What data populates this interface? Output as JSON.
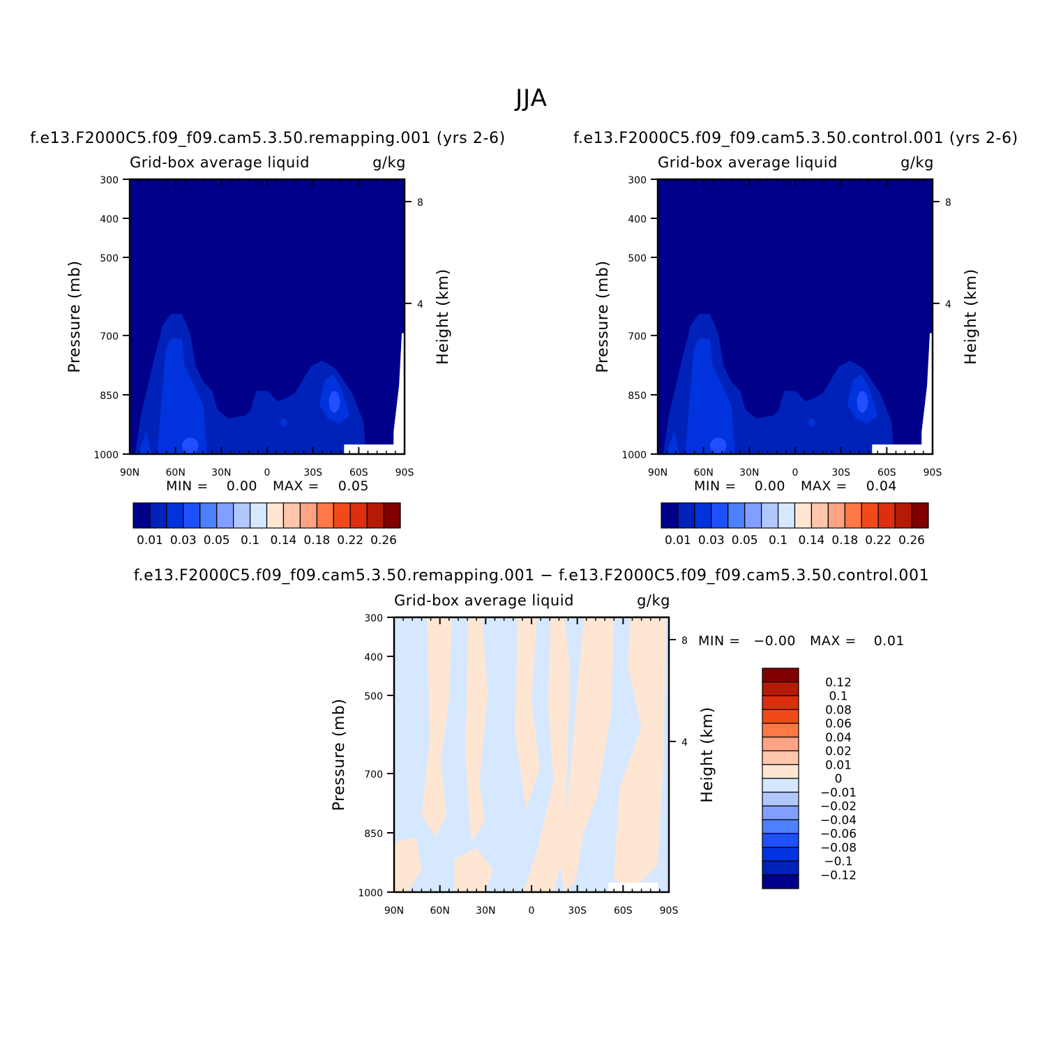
{
  "figure": {
    "title": "JJA"
  },
  "colors": {
    "frame": "#000000",
    "abs_palette": [
      "#00008b",
      "#0022b8",
      "#0033dd",
      "#1f4fff",
      "#4d80ff",
      "#809fff",
      "#b3c7ff",
      "#d6e8ff",
      "#ffe6d3",
      "#ffc6ad",
      "#ffa385",
      "#ff7845",
      "#f04a1a",
      "#dd2f10",
      "#b31a08",
      "#800000"
    ],
    "diff_palette": [
      "#00008b",
      "#0022b8",
      "#0033dd",
      "#1f4fff",
      "#4d80ff",
      "#809fff",
      "#b3c7ff",
      "#d6e8ff",
      "#ffe6d3",
      "#ffc6ad",
      "#ffa385",
      "#ff7845",
      "#f04a1a",
      "#dd2f10",
      "#b31a08",
      "#800000"
    ]
  },
  "chart_data": [
    {
      "type": "heatmap",
      "case_title": "f.e13.F2000C5.f09_f09.cam5.3.50.remapping.001 (yrs 2-6)",
      "title": "Grid-box average liquid",
      "units": "g/kg",
      "xlabel": "",
      "ylabel": "Pressure (mb)",
      "y2label": "Height (km)",
      "x_ticks": [
        "90N",
        "60N",
        "30N",
        "0",
        "30S",
        "60S",
        "90S"
      ],
      "y_ticks": [
        "300",
        "400",
        "500",
        "700",
        "850",
        "1000"
      ],
      "y2_ticks": [
        "8",
        "4"
      ],
      "min_label": "MIN =",
      "min_value": "0.00",
      "max_label": "MAX =",
      "max_value": "0.05",
      "colorbar_labels": [
        "0.01",
        "0.03",
        "0.05",
        "0.1",
        "0.14",
        "0.18",
        "0.22",
        "0.26"
      ],
      "colorbar_orientation": "horizontal"
    },
    {
      "type": "heatmap",
      "case_title": "f.e13.F2000C5.f09_f09.cam5.3.50.control.001 (yrs 2-6)",
      "title": "Grid-box average liquid",
      "units": "g/kg",
      "xlabel": "",
      "ylabel": "Pressure (mb)",
      "y2label": "Height (km)",
      "x_ticks": [
        "90N",
        "60N",
        "30N",
        "0",
        "30S",
        "60S",
        "90S"
      ],
      "y_ticks": [
        "300",
        "400",
        "500",
        "700",
        "850",
        "1000"
      ],
      "y2_ticks": [
        "8",
        "4"
      ],
      "min_label": "MIN =",
      "min_value": "0.00",
      "max_label": "MAX =",
      "max_value": "0.04",
      "colorbar_labels": [
        "0.01",
        "0.03",
        "0.05",
        "0.1",
        "0.14",
        "0.18",
        "0.22",
        "0.26"
      ],
      "colorbar_orientation": "horizontal"
    },
    {
      "type": "heatmap",
      "case_title": "f.e13.F2000C5.f09_f09.cam5.3.50.remapping.001 − f.e13.F2000C5.f09_f09.cam5.3.50.control.001",
      "title": "Grid-box average liquid",
      "units": "g/kg",
      "xlabel": "",
      "ylabel": "Pressure (mb)",
      "y2label": "Height (km)",
      "x_ticks": [
        "90N",
        "60N",
        "30N",
        "0",
        "30S",
        "60S",
        "90S"
      ],
      "y_ticks": [
        "300",
        "400",
        "500",
        "700",
        "850",
        "1000"
      ],
      "y2_ticks": [
        "8",
        "4"
      ],
      "min_label": "MIN =",
      "min_value": "−0.00",
      "max_label": "MAX =",
      "max_value": "0.01",
      "colorbar_labels": [
        "0.12",
        "0.1",
        "0.08",
        "0.06",
        "0.04",
        "0.02",
        "0.01",
        "0",
        "−0.01",
        "−0.02",
        "−0.04",
        "−0.06",
        "−0.08",
        "−0.1",
        "−0.12"
      ],
      "colorbar_orientation": "vertical"
    }
  ]
}
